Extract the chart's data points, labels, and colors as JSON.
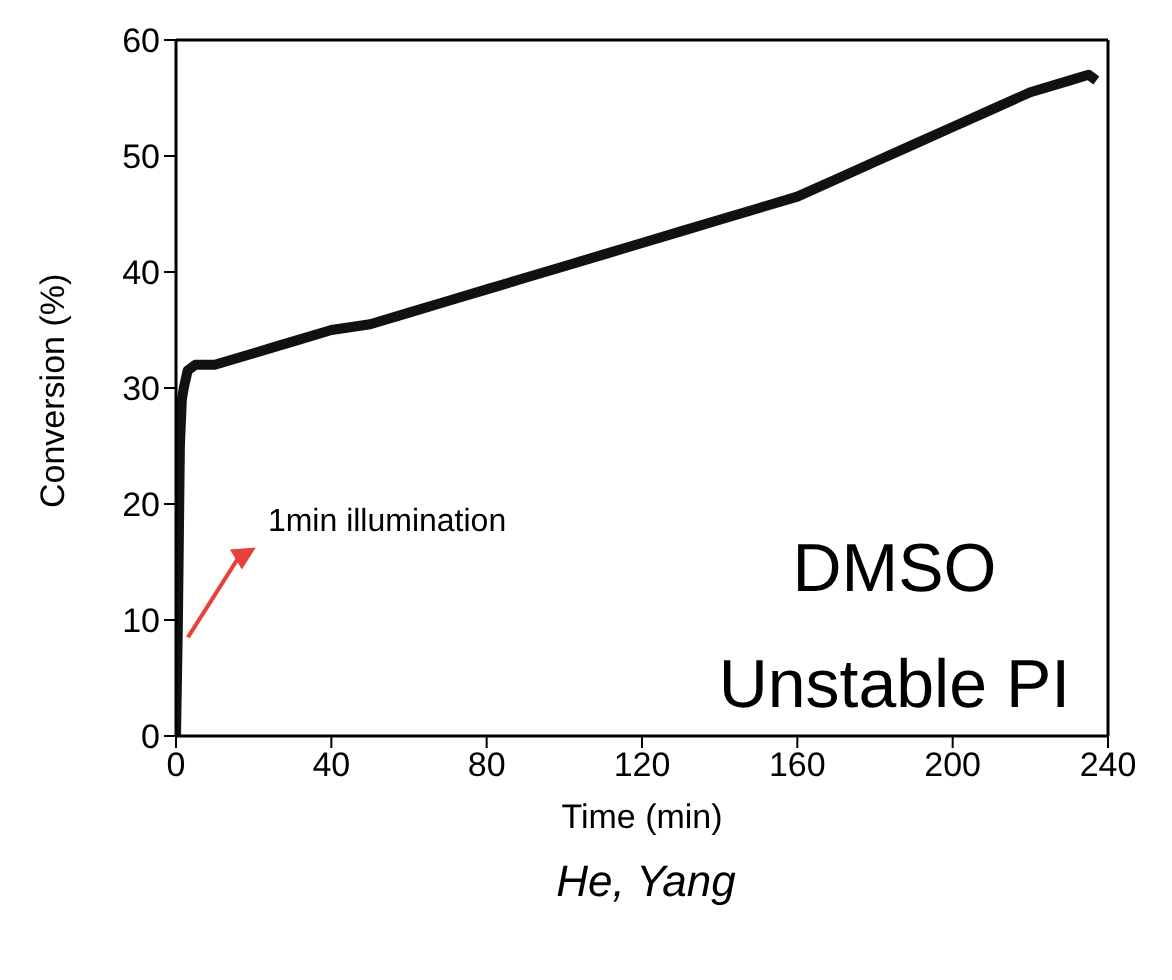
{
  "chart_data": {
    "type": "line",
    "xlabel": "Time (min)",
    "ylabel": "Conversion (%)",
    "x": [
      0,
      0.5,
      1,
      1.5,
      2,
      3,
      5,
      10,
      15,
      20,
      25,
      30,
      40,
      50,
      60,
      70,
      80,
      90,
      100,
      110,
      120,
      130,
      140,
      150,
      160,
      170,
      180,
      190,
      200,
      210,
      220,
      230,
      235,
      237
    ],
    "series": [
      {
        "color": "#111111",
        "values": [
          0,
          10,
          25,
          29,
          30,
          31.5,
          32,
          32,
          32.5,
          33,
          33.5,
          34,
          35,
          35.5,
          36.5,
          37.5,
          38.5,
          39.5,
          40.5,
          41.5,
          42.5,
          43.5,
          44.5,
          45.5,
          46.5,
          48,
          49.5,
          51,
          52.5,
          54,
          55.5,
          56.5,
          57,
          56.5
        ]
      }
    ],
    "xlim": [
      0,
      240
    ],
    "xticks": [
      0,
      40,
      80,
      120,
      160,
      200,
      240
    ],
    "ylim": [
      0,
      60
    ],
    "yticks": [
      0,
      10,
      20,
      30,
      40,
      50,
      60
    ],
    "grid": false,
    "legend": false,
    "marker": "none",
    "line_style": "solid",
    "annotations": [
      {
        "text": "1min illumination",
        "x": 1,
        "y": 8.5
      },
      "DMSO",
      "Unstable PI",
      "He, Yang"
    ]
  }
}
